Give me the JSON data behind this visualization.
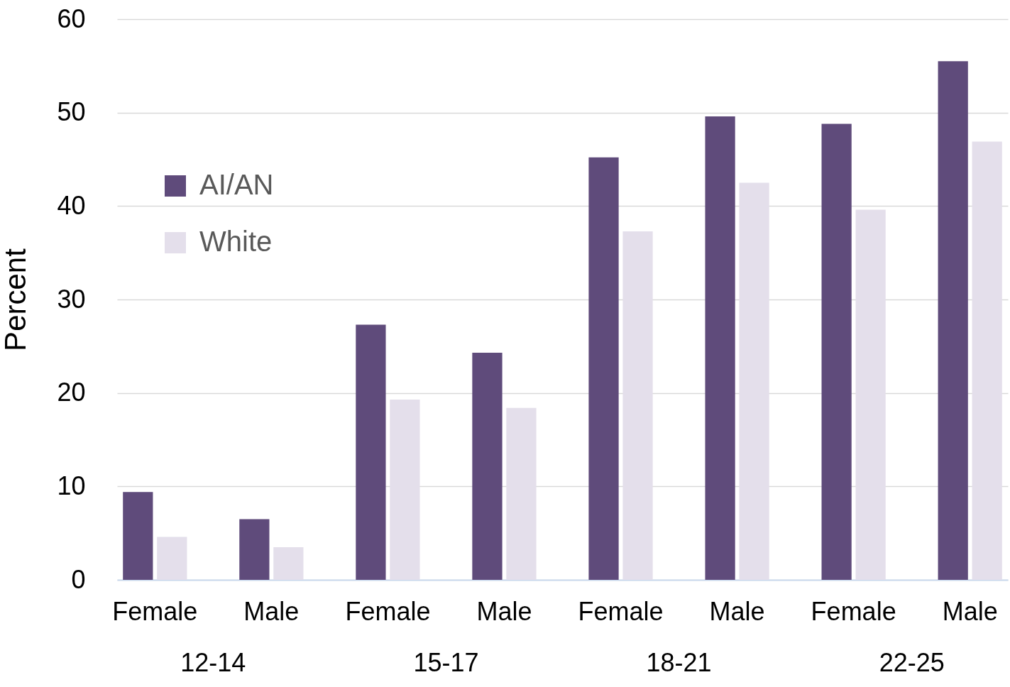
{
  "chart_data": {
    "type": "bar",
    "ylabel": "Percent",
    "categories": [
      "Female",
      "Male",
      "Female",
      "Male",
      "Female",
      "Male",
      "Female",
      "Male"
    ],
    "series": [
      {
        "name": "AI/AN",
        "color": "#5f4b7b",
        "values": [
          9.4,
          6.5,
          27.3,
          24.3,
          45.2,
          49.6,
          48.8,
          55.5
        ]
      },
      {
        "name": "White",
        "color": "#e4dfeb",
        "values": [
          4.6,
          3.5,
          19.3,
          18.4,
          37.3,
          42.5,
          39.6,
          46.9
        ]
      }
    ],
    "annotations": [
      "12-14",
      "15-17",
      "18-21",
      "22-25"
    ],
    "ylim": [
      0,
      60
    ],
    "yticks": [
      0,
      10,
      20,
      30,
      40,
      50,
      60
    ],
    "grid": "y",
    "legend": "top left"
  }
}
